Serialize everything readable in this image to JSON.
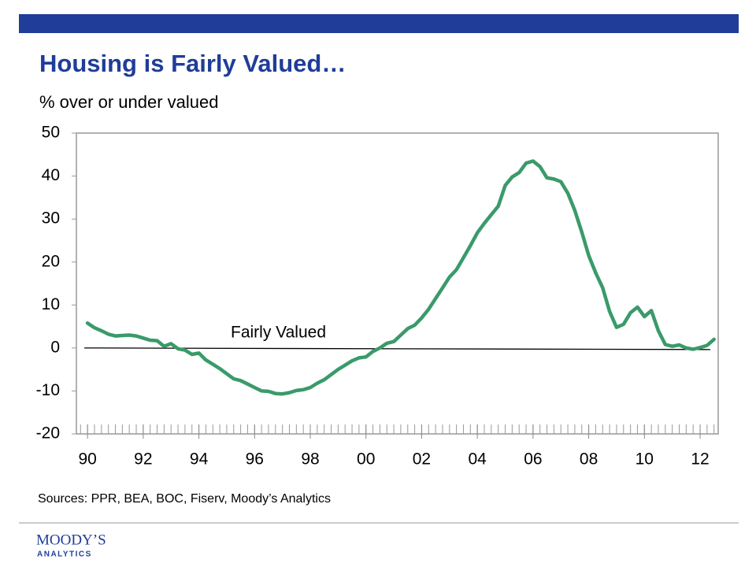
{
  "chart_data": {
    "type": "line",
    "title": "Housing is Fairly Valued…",
    "subtitle": "% over or under valued",
    "annotation": "Fairly Valued",
    "source": "Sources: PPR, BEA, BOC, Fiserv, Moody’s Analytics",
    "logo": {
      "name": "MOODY’S",
      "tagline": "ANALYTICS"
    },
    "xlim": [
      1989.6,
      2012.65
    ],
    "ylim": [
      -20,
      50
    ],
    "yticks": [
      50,
      40,
      30,
      20,
      10,
      0,
      -10,
      -20
    ],
    "xticks": [
      {
        "value": 1990,
        "label": "90"
      },
      {
        "value": 1992,
        "label": "92"
      },
      {
        "value": 1994,
        "label": "94"
      },
      {
        "value": 1996,
        "label": "96"
      },
      {
        "value": 1998,
        "label": "98"
      },
      {
        "value": 2000,
        "label": "00"
      },
      {
        "value": 2002,
        "label": "02"
      },
      {
        "value": 2004,
        "label": "04"
      },
      {
        "value": 2006,
        "label": "06"
      },
      {
        "value": 2008,
        "label": "08"
      },
      {
        "value": 2010,
        "label": "10"
      },
      {
        "value": 2012,
        "label": "12"
      }
    ],
    "x": [
      1990,
      1990.25,
      1990.5,
      1990.75,
      1991,
      1991.25,
      1991.5,
      1991.75,
      1992,
      1992.25,
      1992.5,
      1992.75,
      1993,
      1993.25,
      1993.5,
      1993.75,
      1994,
      1994.25,
      1994.5,
      1994.75,
      1995,
      1995.25,
      1995.5,
      1995.75,
      1996,
      1996.25,
      1996.5,
      1996.75,
      1997,
      1997.25,
      1997.5,
      1997.75,
      1998,
      1998.25,
      1998.5,
      1998.75,
      1999,
      1999.25,
      1999.5,
      1999.75,
      2000,
      2000.25,
      2000.5,
      2000.75,
      2001,
      2001.25,
      2001.5,
      2001.75,
      2002,
      2002.25,
      2002.5,
      2002.75,
      2003,
      2003.25,
      2003.5,
      2003.75,
      2004,
      2004.25,
      2004.5,
      2004.75,
      2005,
      2005.25,
      2005.5,
      2005.75,
      2006,
      2006.25,
      2006.5,
      2006.75,
      2007,
      2007.25,
      2007.5,
      2007.75,
      2008,
      2008.25,
      2008.5,
      2008.75,
      2009,
      2009.25,
      2009.5,
      2009.75,
      2010,
      2010.25,
      2010.5,
      2010.75,
      2011,
      2011.25,
      2011.5,
      2011.75,
      2012,
      2012.25,
      2012.5
    ],
    "series": [
      {
        "color": "#3a9a6a",
        "values": [
          5.8,
          4.7,
          4.0,
          3.2,
          2.8,
          2.9,
          3.0,
          2.8,
          2.3,
          1.8,
          1.7,
          0.4,
          1.0,
          -0.2,
          -0.5,
          -1.5,
          -1.2,
          -2.8,
          -3.8,
          -4.8,
          -6.0,
          -7.2,
          -7.6,
          -8.4,
          -9.2,
          -10.0,
          -10.1,
          -10.6,
          -10.7,
          -10.4,
          -9.9,
          -9.7,
          -9.2,
          -8.2,
          -7.4,
          -6.2,
          -5.0,
          -4.0,
          -3.0,
          -2.3,
          -2.1,
          -0.8,
          0.0,
          1.1,
          1.5,
          3.0,
          4.5,
          5.3,
          7.0,
          9.0,
          11.5,
          14.0,
          16.5,
          18.2,
          21.0,
          23.8,
          26.8,
          29.0,
          31.0,
          33.0,
          37.8,
          39.8,
          40.8,
          43.0,
          43.5,
          42.2,
          39.6,
          39.3,
          38.7,
          36.0,
          32.0,
          27.0,
          21.5,
          17.5,
          14.0,
          8.5,
          4.8,
          5.5,
          8.2,
          9.5,
          7.3,
          8.7,
          4.0,
          0.8,
          0.4,
          0.7,
          0.0,
          -0.3,
          0.1,
          0.6,
          2.0
        ]
      }
    ]
  }
}
